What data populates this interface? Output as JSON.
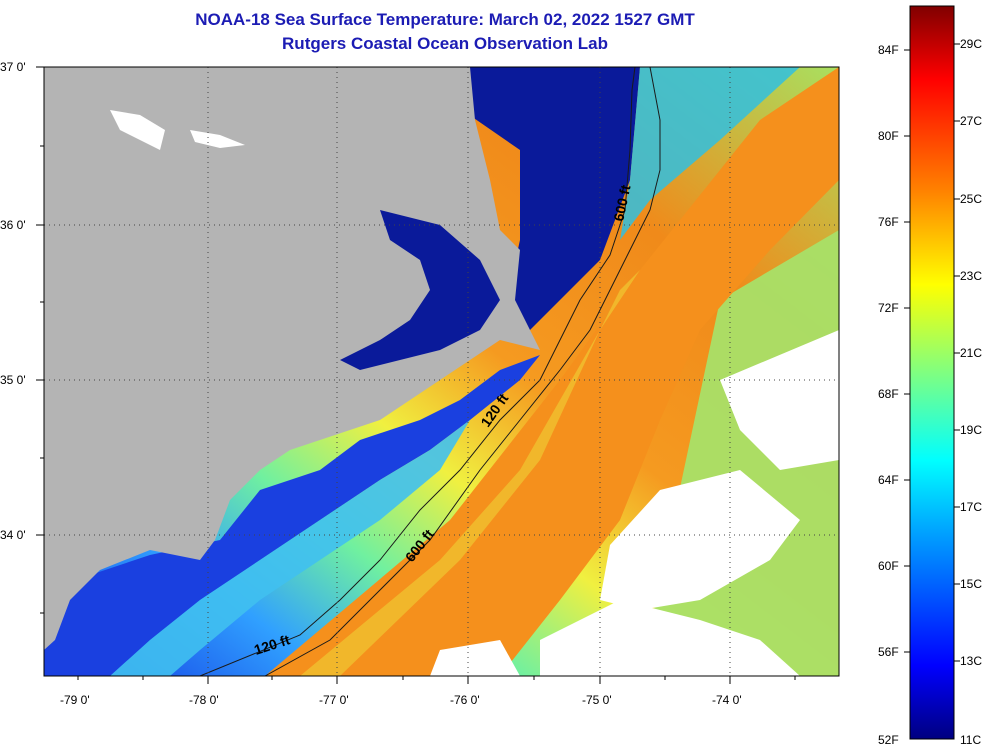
{
  "title": "NOAA-18 Sea Surface Temperature:  March 02, 2022 1527 GMT",
  "subtitle": "Rutgers Coastal Ocean Observation Lab",
  "map": {
    "lat_labels": [
      "37 0'",
      "36 0'",
      "35 0'",
      "34 0'"
    ],
    "lon_labels": [
      "-79 0'",
      "-78 0'",
      "-77 0'",
      "-76 0'",
      "-75 0'",
      "-74 0'"
    ],
    "contour_labels": [
      "600 ft",
      "120 ft",
      "600 ft",
      "120 ft"
    ]
  },
  "colorbar": {
    "fahrenheit_labels": [
      "84F",
      "80F",
      "76F",
      "72F",
      "68F",
      "64F",
      "60F",
      "56F",
      "52F"
    ],
    "celsius_labels": [
      "29C",
      "27C",
      "25C",
      "23C",
      "21C",
      "19C",
      "17C",
      "15C",
      "13C",
      "11C"
    ],
    "min_F": 52,
    "max_F": 86,
    "colors": [
      "#000080",
      "#0000ff",
      "#00a0ff",
      "#00ffff",
      "#80ff80",
      "#ffff00",
      "#ff8000",
      "#ff0000",
      "#800000"
    ]
  },
  "legend_colors": {
    "land": "#b4b4b4",
    "cloud": "#ffffff",
    "title": "#1c1cb4"
  }
}
